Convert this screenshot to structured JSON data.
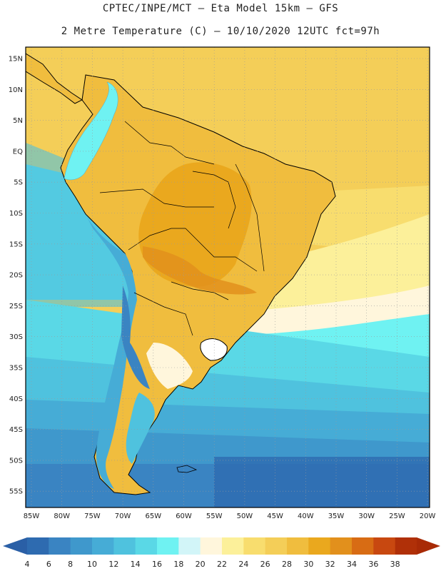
{
  "header": {
    "line1": "CPTEC/INPE/MCT –  Eta Model 15km – GFS",
    "line2": "2 Metre Temperature (C) – 10/10/2020 12UTC fct=97h"
  },
  "map": {
    "lat_labels": [
      "15N",
      "10N",
      "5N",
      "EQ",
      "5S",
      "10S",
      "15S",
      "20S",
      "25S",
      "30S",
      "35S",
      "40S",
      "45S",
      "50S",
      "55S"
    ],
    "lon_labels": [
      "85W",
      "80W",
      "75W",
      "70W",
      "65W",
      "60W",
      "55W",
      "50W",
      "45W",
      "40W",
      "35W",
      "30W",
      "25W",
      "20W"
    ]
  },
  "colorbar": {
    "labels": [
      "4",
      "6",
      "8",
      "10",
      "12",
      "14",
      "16",
      "18",
      "20",
      "22",
      "24",
      "26",
      "28",
      "30",
      "32",
      "34",
      "36",
      "38"
    ],
    "colors": [
      "#2e6bb0",
      "#3a84c2",
      "#3f98cc",
      "#46acd6",
      "#4fc2de",
      "#5ad8e6",
      "#6ff2f2",
      "#d2f5f8",
      "#fff6dc",
      "#fcf09a",
      "#f8dd6e",
      "#f4ce58",
      "#f0bd3e",
      "#eaa81e",
      "#e2901c",
      "#d86c14",
      "#c84810",
      "#b03008"
    ],
    "left_arrow_color": "#2a5fa6",
    "right_arrow_color": "#a82a06"
  }
}
